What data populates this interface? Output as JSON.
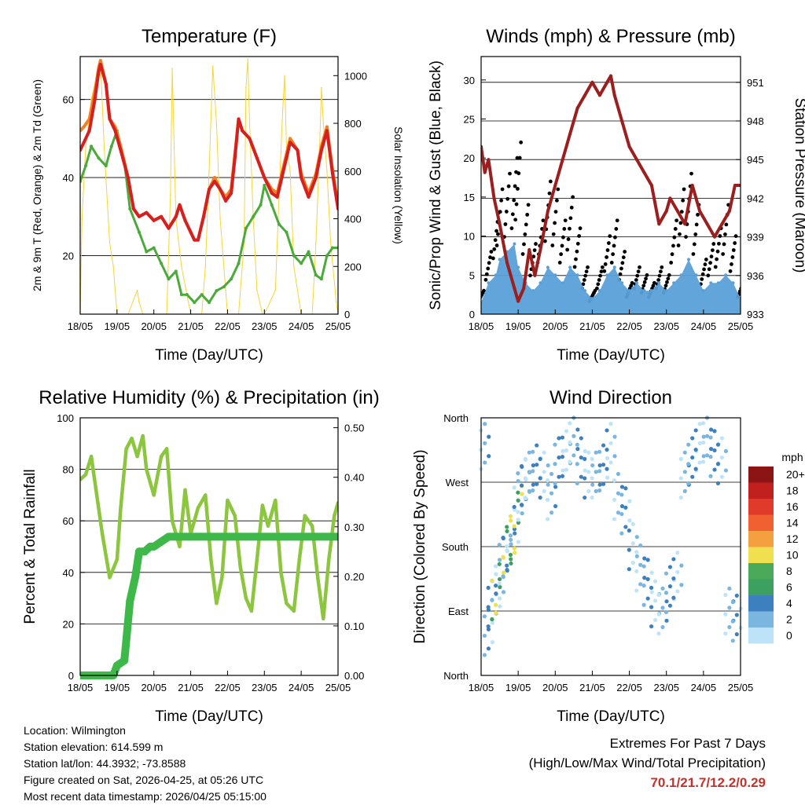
{
  "chart_data": [
    {
      "type": "line",
      "title": "Temperature (F)",
      "xlabel": "Time (Day/UTC)",
      "ylabel_left": "2m & 9m T (Red, Orange) & 2m Td (Green)",
      "ylabel_right": "Solar Insolation (Yellow)",
      "x_ticks": [
        "18/05",
        "19/05",
        "20/05",
        "21/05",
        "22/05",
        "23/05",
        "24/05",
        "25/05"
      ],
      "xlim": [
        0,
        7
      ],
      "ylim_left": [
        5,
        71
      ],
      "yticks_left": [
        20,
        40,
        60
      ],
      "ylim_right": [
        0,
        1080
      ],
      "yticks_right": [
        0,
        200,
        400,
        600,
        800,
        1000
      ],
      "series": [
        {
          "name": "2m T",
          "color": "#d62020",
          "x": [
            0,
            0.1,
            0.25,
            0.4,
            0.5,
            0.55,
            0.7,
            0.8,
            0.95,
            1.1,
            1.3,
            1.45,
            1.6,
            1.8,
            2.0,
            2.2,
            2.4,
            2.6,
            2.7,
            2.85,
            3.0,
            3.1,
            3.2,
            3.35,
            3.5,
            3.65,
            3.8,
            3.95,
            4.1,
            4.2,
            4.3,
            4.4,
            4.6,
            4.8,
            5.0,
            5.2,
            5.35,
            5.5,
            5.7,
            5.9,
            6.0,
            6.2,
            6.4,
            6.55,
            6.7,
            6.85,
            7.0
          ],
          "values": [
            47,
            49,
            52,
            60,
            67,
            69,
            64,
            55,
            52,
            47,
            40,
            32,
            30,
            31,
            29,
            30,
            27,
            30,
            33,
            29,
            26,
            24,
            24,
            30,
            37,
            39,
            37,
            34,
            36,
            45,
            55,
            52,
            50,
            45,
            40,
            36,
            35,
            41,
            49,
            47,
            40,
            35,
            40,
            47,
            52,
            41,
            32
          ]
        },
        {
          "name": "9m T",
          "color": "#f08020",
          "x": [
            0,
            0.1,
            0.25,
            0.4,
            0.5,
            0.55,
            0.7,
            0.8,
            0.95,
            1.1,
            1.3,
            1.45,
            1.6,
            1.8,
            2.0,
            2.2,
            2.4,
            2.6,
            2.7,
            2.85,
            3.0,
            3.1,
            3.2,
            3.35,
            3.5,
            3.65,
            3.8,
            3.95,
            4.1,
            4.2,
            4.3,
            4.4,
            4.6,
            4.8,
            5.0,
            5.2,
            5.35,
            5.5,
            5.7,
            5.9,
            6.0,
            6.2,
            6.4,
            6.55,
            6.7,
            6.85,
            7.0
          ],
          "values": [
            52,
            53,
            55,
            62,
            68,
            70,
            64,
            55,
            53,
            48,
            40,
            32,
            30,
            31,
            29,
            30,
            27,
            30,
            33,
            29,
            26,
            24,
            24,
            30,
            37,
            40,
            37,
            35,
            37,
            46,
            55,
            52,
            50,
            45,
            40,
            37,
            36,
            42,
            50,
            47,
            41,
            36,
            41,
            48,
            53,
            42,
            33
          ]
        },
        {
          "name": "2m Td",
          "color": "#4aaa3a",
          "x": [
            0,
            0.15,
            0.3,
            0.5,
            0.7,
            0.85,
            1.0,
            1.2,
            1.35,
            1.6,
            1.8,
            2.0,
            2.2,
            2.4,
            2.6,
            2.75,
            2.9,
            3.1,
            3.3,
            3.5,
            3.7,
            3.9,
            4.1,
            4.3,
            4.5,
            4.7,
            4.9,
            5.0,
            5.2,
            5.4,
            5.6,
            5.8,
            6.0,
            6.2,
            6.4,
            6.55,
            6.7,
            6.85,
            7.0
          ],
          "values": [
            39,
            43,
            48,
            45,
            43,
            48,
            52,
            44,
            32,
            26,
            21,
            22,
            18,
            14,
            16,
            10,
            10,
            8,
            10,
            8,
            11,
            12,
            14,
            18,
            27,
            30,
            33,
            38,
            33,
            28,
            26,
            20,
            18,
            21,
            15,
            14,
            20,
            22,
            22
          ]
        },
        {
          "name": "Solar Insolation",
          "color": "#f5d538",
          "axis": "right",
          "x": [
            0,
            0.05,
            0.15,
            0.3,
            0.45,
            0.55,
            0.65,
            0.8,
            0.9,
            1.0,
            1.3,
            1.5,
            1.55,
            1.6,
            1.7,
            2.0,
            2.35,
            2.45,
            2.5,
            2.55,
            2.6,
            2.75,
            2.9,
            3.0,
            3.3,
            3.4,
            3.5,
            3.6,
            3.7,
            3.8,
            3.95,
            4.0,
            4.3,
            4.45,
            4.5,
            4.55,
            4.6,
            4.7,
            4.8,
            4.95,
            5.0,
            5.3,
            5.4,
            5.5,
            5.55,
            5.6,
            5.7,
            5.8,
            5.95,
            6.0,
            6.3,
            6.4,
            6.5,
            6.55,
            6.6,
            6.7,
            6.8,
            6.95,
            7.0
          ],
          "values": [
            0,
            400,
            700,
            900,
            1000,
            1060,
            700,
            300,
            200,
            0,
            0,
            80,
            100,
            50,
            0,
            0,
            0,
            500,
            1030,
            700,
            400,
            200,
            80,
            0,
            0,
            200,
            600,
            1040,
            800,
            400,
            100,
            0,
            0,
            300,
            950,
            1070,
            800,
            400,
            100,
            0,
            0,
            100,
            500,
            860,
            1000,
            700,
            600,
            200,
            50,
            0,
            0,
            300,
            700,
            950,
            800,
            600,
            300,
            50,
            0
          ]
        }
      ]
    },
    {
      "type": "scatter",
      "title": "Winds (mph) & Pressure (mb)",
      "xlabel": "Time (Day/UTC)",
      "ylabel_left": "Sonic/Prop Wind & Gust (Blue, Black)",
      "ylabel_right": "Station Pressure (Maroon)",
      "x_ticks": [
        "18/05",
        "19/05",
        "20/05",
        "21/05",
        "22/05",
        "23/05",
        "24/05",
        "25/05"
      ],
      "xlim": [
        0,
        7
      ],
      "ylim_left": [
        0,
        33
      ],
      "yticks_left": [
        0,
        5,
        10,
        15,
        20,
        25,
        30
      ],
      "ylim_right": [
        933,
        953
      ],
      "yticks_right": [
        933,
        936,
        939,
        942,
        945,
        948,
        951
      ],
      "series": [
        {
          "name": "Wind",
          "color": "#5aa0d8",
          "x": [
            0,
            0.2,
            0.4,
            0.5,
            0.7,
            0.9,
            1.0,
            1.2,
            1.4,
            1.6,
            1.8,
            2.0,
            2.2,
            2.4,
            2.6,
            2.8,
            3.0,
            3.2,
            3.4,
            3.6,
            3.8,
            4.0,
            4.2,
            4.4,
            4.6,
            4.8,
            5.0,
            5.2,
            5.4,
            5.6,
            5.8,
            6.0,
            6.2,
            6.4,
            6.6,
            6.8,
            7.0
          ],
          "values": [
            1.5,
            4,
            5,
            7,
            8,
            9,
            6,
            4,
            3,
            4,
            6,
            5,
            4,
            6,
            5,
            3,
            2,
            3,
            5,
            6,
            4,
            3,
            4,
            3,
            3,
            4,
            3,
            4,
            5,
            7,
            5,
            3,
            4,
            4,
            5,
            4,
            2
          ]
        },
        {
          "name": "Gust",
          "color": "#000000",
          "x": [
            0,
            0.2,
            0.4,
            0.5,
            0.7,
            0.9,
            1.0,
            1.2,
            1.4,
            1.6,
            1.8,
            2.0,
            2.2,
            2.4,
            2.6,
            2.8,
            3.0,
            3.2,
            3.4,
            3.6,
            3.8,
            4.0,
            4.2,
            4.4,
            4.6,
            4.8,
            5.0,
            5.2,
            5.4,
            5.6,
            5.8,
            6.0,
            6.2,
            6.4,
            6.6,
            6.8,
            7.0
          ],
          "values": [
            3,
            8,
            13,
            16,
            18,
            20,
            22,
            14,
            9,
            12,
            17,
            16,
            12,
            15,
            11,
            6,
            3,
            6,
            10,
            12,
            8,
            4,
            6,
            5,
            4,
            6,
            5,
            12,
            16,
            18,
            14,
            7,
            9,
            11,
            14,
            10,
            4
          ]
        },
        {
          "name": "Station Pressure",
          "color": "#9c1f1f",
          "axis": "right",
          "x": [
            0,
            0.1,
            0.2,
            0.35,
            0.5,
            0.7,
            0.9,
            1.0,
            1.15,
            1.3,
            1.45,
            1.6,
            1.8,
            2.0,
            2.2,
            2.4,
            2.6,
            2.8,
            3.0,
            3.2,
            3.4,
            3.5,
            3.6,
            3.8,
            4.0,
            4.2,
            4.4,
            4.6,
            4.8,
            5.0,
            5.1,
            5.3,
            5.5,
            5.7,
            5.9,
            6.1,
            6.3,
            6.5,
            6.7,
            6.85,
            7.0
          ],
          "values": [
            946,
            944,
            945,
            942,
            940,
            937,
            935,
            934,
            935,
            938,
            936,
            938,
            941,
            943,
            945,
            947,
            949,
            950,
            951,
            950,
            951,
            951.5,
            950,
            948,
            946,
            945,
            944,
            943,
            940,
            941,
            942,
            941,
            940,
            943,
            941,
            940,
            939,
            940,
            941,
            943,
            943
          ]
        }
      ]
    },
    {
      "type": "line",
      "title": "Relative Humidity (%) & Precipitation (in)",
      "xlabel": "Time (Day/UTC)",
      "ylabel_left": "Percent & Total Rainfall",
      "x_ticks": [
        "18/05",
        "19/05",
        "20/05",
        "21/05",
        "22/05",
        "23/05",
        "24/05",
        "25/05"
      ],
      "xlim": [
        0,
        7
      ],
      "ylim_left": [
        0,
        100
      ],
      "yticks_left": [
        0,
        20,
        40,
        60,
        80,
        100
      ],
      "ylim_right": [
        0,
        0.52
      ],
      "yticks_right": [
        "0.00",
        "0.10",
        "0.20",
        "0.30",
        "0.40",
        "0.50"
      ],
      "series": [
        {
          "name": "Relative Humidity",
          "color": "#8cc63f",
          "x": [
            0,
            0.15,
            0.3,
            0.45,
            0.6,
            0.8,
            1.0,
            1.1,
            1.25,
            1.4,
            1.55,
            1.7,
            1.8,
            2.0,
            2.2,
            2.35,
            2.5,
            2.7,
            2.85,
            3.0,
            3.2,
            3.4,
            3.55,
            3.7,
            3.85,
            4.0,
            4.2,
            4.35,
            4.5,
            4.65,
            4.8,
            4.95,
            5.1,
            5.3,
            5.45,
            5.6,
            5.8,
            5.95,
            6.1,
            6.3,
            6.45,
            6.6,
            6.75,
            6.9,
            7.0
          ],
          "values": [
            76,
            78,
            85,
            70,
            55,
            38,
            45,
            65,
            88,
            92,
            85,
            93,
            80,
            70,
            85,
            88,
            60,
            50,
            72,
            55,
            65,
            70,
            45,
            28,
            38,
            68,
            62,
            42,
            30,
            25,
            45,
            66,
            58,
            68,
            40,
            28,
            25,
            45,
            62,
            58,
            38,
            22,
            45,
            62,
            67
          ]
        },
        {
          "name": "Total Rainfall",
          "color": "#3fb84a",
          "axis": "right",
          "x": [
            0,
            0.9,
            1.0,
            1.2,
            1.35,
            1.5,
            1.6,
            1.75,
            1.9,
            2.0,
            2.2,
            2.4,
            2.6,
            3.0,
            4.0,
            5.0,
            6.0,
            7.0
          ],
          "values": [
            0,
            0,
            0.02,
            0.03,
            0.15,
            0.2,
            0.25,
            0.25,
            0.26,
            0.26,
            0.27,
            0.28,
            0.28,
            0.28,
            0.28,
            0.28,
            0.28,
            0.28
          ]
        }
      ]
    },
    {
      "type": "scatter",
      "title": "Wind Direction",
      "xlabel": "Time (Day/UTC)",
      "ylabel_left": "Direction (Colored By Speed)",
      "x_ticks": [
        "18/05",
        "19/05",
        "20/05",
        "21/05",
        "22/05",
        "23/05",
        "24/05",
        "25/05"
      ],
      "xlim": [
        0,
        7
      ],
      "y_categories": [
        "North",
        "East",
        "South",
        "West",
        "North"
      ],
      "ylim_left": [
        0,
        360
      ],
      "legend_title": "mph",
      "legend_labels": [
        "20+",
        "18",
        "16",
        "14",
        "12",
        "10",
        "8",
        "6",
        "4",
        "2",
        "0"
      ],
      "legend_colors": [
        "#8c1414",
        "#c2201f",
        "#e03a2a",
        "#f06030",
        "#f5a040",
        "#f0e050",
        "#4aaa5a",
        "#3ca060",
        "#3c80c0",
        "#7ab6e0",
        "#bde3f8"
      ],
      "series": [
        {
          "name": "Direction",
          "color": "#5a9ad0",
          "x": [
            0.1,
            0.2,
            0.3,
            0.4,
            0.5,
            0.6,
            0.7,
            0.8,
            0.9,
            1.0,
            1.1,
            1.2,
            1.3,
            1.5,
            1.7,
            1.9,
            2.1,
            2.3,
            2.5,
            2.7,
            2.9,
            3.1,
            3.3,
            3.5,
            3.7,
            3.9,
            4.1,
            4.3,
            4.5,
            4.7,
            4.9,
            5.1,
            5.3,
            5.5,
            5.7,
            5.9,
            6.1,
            6.3,
            6.5,
            6.7,
            6.9
          ],
          "values": [
            320,
            60,
            100,
            110,
            130,
            160,
            170,
            185,
            200,
            240,
            260,
            270,
            280,
            290,
            280,
            250,
            300,
            310,
            330,
            300,
            280,
            280,
            290,
            320,
            250,
            230,
            180,
            150,
            130,
            100,
            90,
            120,
            140,
            280,
            300,
            320,
            330,
            310,
            300,
            90,
            80
          ]
        }
      ]
    }
  ],
  "footer": {
    "location": "Location: Wilmington",
    "elevation": "Station elevation: 614.599 m",
    "latlon": "Station lat/lon: 44.3932; -73.8588",
    "created": "Figure created on Sat, 2026-04-25, at 05:26 UTC",
    "recent": "Most recent data timestamp: 2026/04/25 05:15:00"
  },
  "extremes": {
    "title": "Extremes For Past 7 Days",
    "subtitle": "(High/Low/Max Wind/Total Precipitation)",
    "values": "70.1/21.7/12.2/0.29"
  }
}
